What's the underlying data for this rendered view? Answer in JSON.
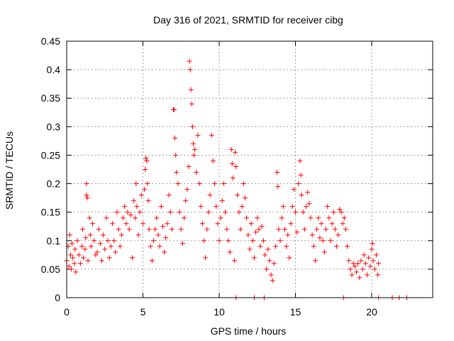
{
  "chart_data": {
    "type": "scatter",
    "title": "Day 316 of 2021, SRMTID for receiver cibg",
    "xlabel": "GPS time / hours",
    "ylabel": "SRMTID / TECUs",
    "xlim": [
      0,
      24
    ],
    "ylim": [
      0,
      0.45
    ],
    "xticks": [
      0,
      5,
      10,
      15,
      20
    ],
    "xtick_labels": [
      "0",
      "5",
      "10",
      "15",
      "20"
    ],
    "yticks": [
      0,
      0.05,
      0.1,
      0.15,
      0.2,
      0.25,
      0.3,
      0.35,
      0.4,
      0.45
    ],
    "ytick_labels": [
      "0",
      "0.05",
      "0.1",
      "0.15",
      "0.2",
      "0.25",
      "0.3",
      "0.35",
      "0.4",
      "0.45"
    ],
    "grid": true,
    "marker": "+",
    "color": "#ff0000",
    "series": [
      {
        "name": "SRMTID",
        "points": [
          [
            0.0,
            0.065
          ],
          [
            0.1,
            0.09
          ],
          [
            0.15,
            0.055
          ],
          [
            0.2,
            0.11
          ],
          [
            0.25,
            0.075
          ],
          [
            0.3,
            0.05
          ],
          [
            0.35,
            0.095
          ],
          [
            0.4,
            0.07
          ],
          [
            0.5,
            0.06
          ],
          [
            0.55,
            0.085
          ],
          [
            0.6,
            0.045
          ],
          [
            0.7,
            0.1
          ],
          [
            0.8,
            0.075
          ],
          [
            0.9,
            0.06
          ],
          [
            1.0,
            0.09
          ],
          [
            1.05,
            0.12
          ],
          [
            1.1,
            0.07
          ],
          [
            1.2,
            0.085
          ],
          [
            1.25,
            0.105
          ],
          [
            1.3,
            0.2
          ],
          [
            1.3,
            0.18
          ],
          [
            1.35,
            0.175
          ],
          [
            1.4,
            0.065
          ],
          [
            1.5,
            0.14
          ],
          [
            1.55,
            0.11
          ],
          [
            1.6,
            0.09
          ],
          [
            1.7,
            0.13
          ],
          [
            1.8,
            0.1
          ],
          [
            1.9,
            0.075
          ],
          [
            2.0,
            0.08
          ],
          [
            2.1,
            0.12
          ],
          [
            2.2,
            0.095
          ],
          [
            2.3,
            0.065
          ],
          [
            2.4,
            0.11
          ],
          [
            2.5,
            0.085
          ],
          [
            2.6,
            0.14
          ],
          [
            2.7,
            0.1
          ],
          [
            2.8,
            0.07
          ],
          [
            2.9,
            0.09
          ],
          [
            3.0,
            0.13
          ],
          [
            3.1,
            0.1
          ],
          [
            3.2,
            0.08
          ],
          [
            3.3,
            0.15
          ],
          [
            3.4,
            0.12
          ],
          [
            3.5,
            0.09
          ],
          [
            3.6,
            0.11
          ],
          [
            3.7,
            0.14
          ],
          [
            3.8,
            0.16
          ],
          [
            3.9,
            0.13
          ],
          [
            4.0,
            0.15
          ],
          [
            4.1,
            0.12
          ],
          [
            4.2,
            0.145
          ],
          [
            4.3,
            0.07
          ],
          [
            4.4,
            0.17
          ],
          [
            4.5,
            0.14
          ],
          [
            4.55,
            0.2
          ],
          [
            4.6,
            0.16
          ],
          [
            4.7,
            0.11
          ],
          [
            4.8,
            0.15
          ],
          [
            4.9,
            0.18
          ],
          [
            5.0,
            0.13
          ],
          [
            5.1,
            0.19
          ],
          [
            5.15,
            0.225
          ],
          [
            5.2,
            0.245
          ],
          [
            5.25,
            0.24
          ],
          [
            5.3,
            0.2
          ],
          [
            5.35,
            0.17
          ],
          [
            5.4,
            0.12
          ],
          [
            5.5,
            0.09
          ],
          [
            5.6,
            0.065
          ],
          [
            5.7,
            0.1
          ],
          [
            5.8,
            0.12
          ],
          [
            5.9,
            0.14
          ],
          [
            6.0,
            0.11
          ],
          [
            6.1,
            0.09
          ],
          [
            6.2,
            0.16
          ],
          [
            6.3,
            0.125
          ],
          [
            6.4,
            0.08
          ],
          [
            6.5,
            0.105
          ],
          [
            6.6,
            0.13
          ],
          [
            6.7,
            0.18
          ],
          [
            6.8,
            0.15
          ],
          [
            6.9,
            0.12
          ],
          [
            7.0,
            0.33
          ],
          [
            7.05,
            0.33
          ],
          [
            7.1,
            0.28
          ],
          [
            7.15,
            0.25
          ],
          [
            7.2,
            0.22
          ],
          [
            7.3,
            0.2
          ],
          [
            7.4,
            0.15
          ],
          [
            7.5,
            0.12
          ],
          [
            7.6,
            0.095
          ],
          [
            7.7,
            0.14
          ],
          [
            7.8,
            0.17
          ],
          [
            7.9,
            0.19
          ],
          [
            8.0,
            0.23
          ],
          [
            8.05,
            0.415
          ],
          [
            8.1,
            0.4
          ],
          [
            8.15,
            0.365
          ],
          [
            8.2,
            0.34
          ],
          [
            8.25,
            0.3
          ],
          [
            8.3,
            0.27
          ],
          [
            8.35,
            0.25
          ],
          [
            8.4,
            0.26
          ],
          [
            8.5,
            0.22
          ],
          [
            8.6,
            0.285
          ],
          [
            8.7,
            0.2
          ],
          [
            8.8,
            0.16
          ],
          [
            8.9,
            0.13
          ],
          [
            9.0,
            0.1
          ],
          [
            9.1,
            0.07
          ],
          [
            9.2,
            0.12
          ],
          [
            9.3,
            0.15
          ],
          [
            9.4,
            0.18
          ],
          [
            9.5,
            0.285
          ],
          [
            9.6,
            0.24
          ],
          [
            9.7,
            0.2
          ],
          [
            9.8,
            0.16
          ],
          [
            9.9,
            0.13
          ],
          [
            10.0,
            0.1
          ],
          [
            10.1,
            0.14
          ],
          [
            10.2,
            0.17
          ],
          [
            10.3,
            0.2
          ],
          [
            10.4,
            0.15
          ],
          [
            10.5,
            0.12
          ],
          [
            10.6,
            0.1
          ],
          [
            10.7,
            0.08
          ],
          [
            10.8,
            0.26
          ],
          [
            10.85,
            0.235
          ],
          [
            10.9,
            0.21
          ],
          [
            11.0,
            0.065
          ],
          [
            11.05,
            0.255
          ],
          [
            11.1,
            0.23
          ],
          [
            11.2,
            0.18
          ],
          [
            11.3,
            0.15
          ],
          [
            11.4,
            0.12
          ],
          [
            11.5,
            0.16
          ],
          [
            11.6,
            0.2
          ],
          [
            11.7,
            0.175
          ],
          [
            11.8,
            0.14
          ],
          [
            11.9,
            0.11
          ],
          [
            12.0,
            0.085
          ],
          [
            12.1,
            0.13
          ],
          [
            12.2,
            0.1
          ],
          [
            12.3,
            0.07
          ],
          [
            12.4,
            0.115
          ],
          [
            12.5,
            0.14
          ],
          [
            12.6,
            0.12
          ],
          [
            12.7,
            0.09
          ],
          [
            12.8,
            0.125
          ],
          [
            12.9,
            0.1
          ],
          [
            13.0,
            0.075
          ],
          [
            13.1,
            0.05
          ],
          [
            13.2,
            0.085
          ],
          [
            13.3,
            0.065
          ],
          [
            13.4,
            0.04
          ],
          [
            13.5,
            0.03
          ],
          [
            13.6,
            0.06
          ],
          [
            13.7,
            0.09
          ],
          [
            13.8,
            0.22
          ],
          [
            13.85,
            0.195
          ],
          [
            13.9,
            0.12
          ],
          [
            14.0,
            0.1
          ],
          [
            14.1,
            0.14
          ],
          [
            14.2,
            0.16
          ],
          [
            14.3,
            0.12
          ],
          [
            14.4,
            0.09
          ],
          [
            14.5,
            0.11
          ],
          [
            14.6,
            0.07
          ],
          [
            14.7,
            0.13
          ],
          [
            14.8,
            0.16
          ],
          [
            14.9,
            0.19
          ],
          [
            15.0,
            0.15
          ],
          [
            15.1,
            0.115
          ],
          [
            15.2,
            0.2
          ],
          [
            15.3,
            0.24
          ],
          [
            15.35,
            0.215
          ],
          [
            15.4,
            0.18
          ],
          [
            15.5,
            0.15
          ],
          [
            15.6,
            0.12
          ],
          [
            15.7,
            0.16
          ],
          [
            15.8,
            0.185
          ],
          [
            15.9,
            0.165
          ],
          [
            16.0,
            0.14
          ],
          [
            16.1,
            0.11
          ],
          [
            16.2,
            0.09
          ],
          [
            16.3,
            0.065
          ],
          [
            16.4,
            0.12
          ],
          [
            16.5,
            0.14
          ],
          [
            16.6,
            0.105
          ],
          [
            16.7,
            0.13
          ],
          [
            16.8,
            0.1
          ],
          [
            16.9,
            0.08
          ],
          [
            17.0,
            0.12
          ],
          [
            17.1,
            0.16
          ],
          [
            17.2,
            0.14
          ],
          [
            17.3,
            0.1
          ],
          [
            17.4,
            0.13
          ],
          [
            17.5,
            0.15
          ],
          [
            17.6,
            0.12
          ],
          [
            17.7,
            0.09
          ],
          [
            17.8,
            0.11
          ],
          [
            17.9,
            0.155
          ],
          [
            18.0,
            0.15
          ],
          [
            18.1,
            0.13
          ],
          [
            18.2,
            0.14
          ],
          [
            18.3,
            0.12
          ],
          [
            18.4,
            0.09
          ],
          [
            18.5,
            0.065
          ],
          [
            18.6,
            0.05
          ],
          [
            18.7,
            0.04
          ],
          [
            18.8,
            0.06
          ],
          [
            18.9,
            0.055
          ],
          [
            19.0,
            0.045
          ],
          [
            19.1,
            0.06
          ],
          [
            19.2,
            0.035
          ],
          [
            19.3,
            0.065
          ],
          [
            19.4,
            0.05
          ],
          [
            19.5,
            0.075
          ],
          [
            19.6,
            0.06
          ],
          [
            19.7,
            0.04
          ],
          [
            19.8,
            0.07
          ],
          [
            19.9,
            0.055
          ],
          [
            20.0,
            0.085
          ],
          [
            20.05,
            0.095
          ],
          [
            20.1,
            0.065
          ],
          [
            20.2,
            0.05
          ],
          [
            20.3,
            0.075
          ],
          [
            20.4,
            0.04
          ],
          [
            20.45,
            0.06
          ],
          [
            11.1,
            0.0
          ],
          [
            12.3,
            0.0
          ],
          [
            12.95,
            0.0
          ],
          [
            18.15,
            0.0
          ],
          [
            20.45,
            0.0
          ],
          [
            21.35,
            0.0
          ],
          [
            21.8,
            0.0
          ],
          [
            22.3,
            0.0
          ]
        ]
      }
    ]
  }
}
